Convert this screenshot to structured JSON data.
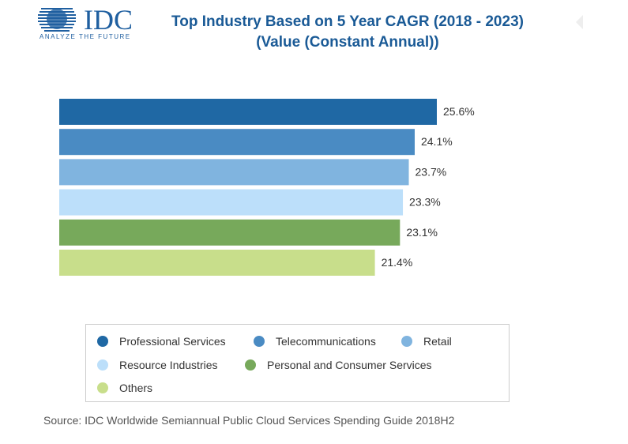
{
  "logo": {
    "text": "IDC",
    "tagline": "ANALYZE THE FUTURE"
  },
  "chart_data": {
    "type": "bar",
    "orientation": "horizontal",
    "title": "Top Industry Based on 5 Year CAGR (2018 - 2023)",
    "subtitle": "(Value (Constant Annual))",
    "categories": [
      "Professional Services",
      "Telecommunications",
      "Retail",
      "Resource Industries",
      "Personal and Consumer Services",
      "Others"
    ],
    "values": [
      25.6,
      24.1,
      23.7,
      23.3,
      23.1,
      21.4
    ],
    "data_labels": [
      "25.6%",
      "24.1%",
      "23.7%",
      "23.3%",
      "23.1%",
      "21.4%"
    ],
    "colors": [
      "#1f68a4",
      "#4a8bc3",
      "#80b4df",
      "#bcdffa",
      "#77a95b",
      "#c8de8b"
    ],
    "xlim": [
      0,
      25.6
    ],
    "grid": false,
    "legend": "bottom"
  },
  "source": "Source: IDC Worldwide Semiannual Public Cloud Services Spending Guide 2018H2"
}
